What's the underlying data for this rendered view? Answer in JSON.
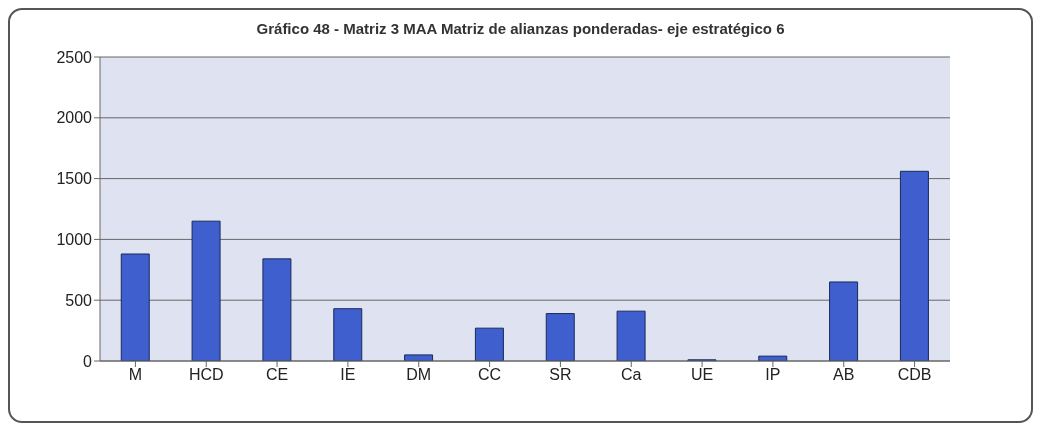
{
  "chart_data": {
    "type": "bar",
    "title": "Gráfico 48 - Matriz 3 MAA Matriz de alianzas ponderadas- eje estratégico 6",
    "categories": [
      "M",
      "HCD",
      "CE",
      "IE",
      "DM",
      "CC",
      "SR",
      "Ca",
      "UE",
      "IP",
      "AB",
      "CDB"
    ],
    "values": [
      880,
      1150,
      840,
      430,
      50,
      270,
      390,
      410,
      10,
      40,
      650,
      1560
    ],
    "color": "#3f5fce",
    "ylim": [
      0,
      2500
    ],
    "yticks": [
      0,
      500,
      1000,
      1500,
      2000,
      2500
    ],
    "grid": "y"
  }
}
